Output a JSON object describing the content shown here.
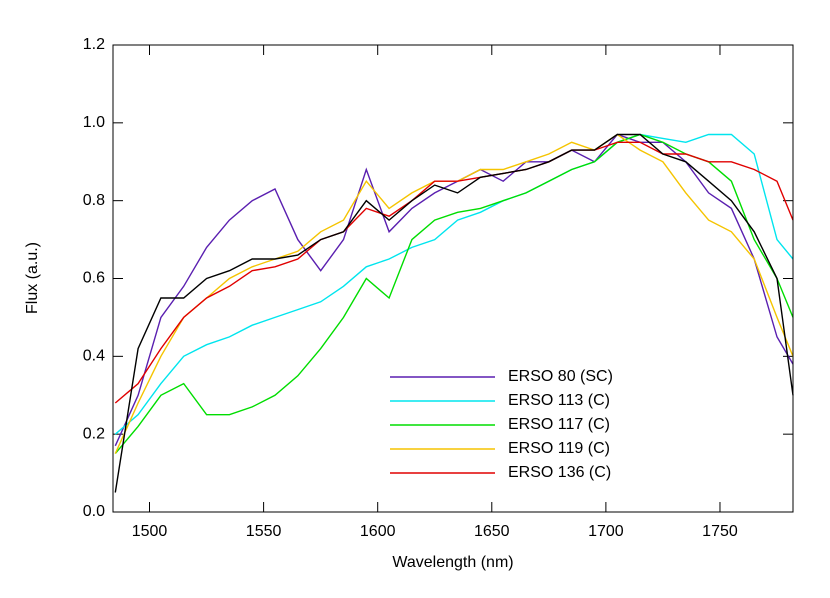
{
  "chart_data": {
    "type": "line",
    "xlabel": "Wavelength (nm)",
    "ylabel": "Flux (a.u.)",
    "x": [
      1485,
      1495,
      1505,
      1515,
      1525,
      1535,
      1545,
      1555,
      1565,
      1575,
      1585,
      1595,
      1605,
      1615,
      1625,
      1635,
      1645,
      1655,
      1665,
      1675,
      1685,
      1695,
      1705,
      1715,
      1725,
      1735,
      1745,
      1755,
      1765,
      1775,
      1782
    ],
    "series": [
      {
        "name": "ERSO 80 (SC)",
        "color": "#5a1fb0",
        "values": [
          0.17,
          0.3,
          0.5,
          0.58,
          0.68,
          0.75,
          0.8,
          0.83,
          0.7,
          0.62,
          0.7,
          0.88,
          0.72,
          0.78,
          0.82,
          0.85,
          0.88,
          0.85,
          0.9,
          0.9,
          0.93,
          0.9,
          0.97,
          0.95,
          0.95,
          0.9,
          0.82,
          0.78,
          0.65,
          0.45,
          0.38
        ]
      },
      {
        "name": "ERSO 113 (C)",
        "color": "#00e5ee",
        "values": [
          0.2,
          0.25,
          0.33,
          0.4,
          0.43,
          0.45,
          0.48,
          0.5,
          0.52,
          0.54,
          0.58,
          0.63,
          0.65,
          0.68,
          0.7,
          0.75,
          0.77,
          0.8,
          0.82,
          0.85,
          0.88,
          0.9,
          0.95,
          0.97,
          0.96,
          0.95,
          0.97,
          0.97,
          0.92,
          0.7,
          0.65
        ]
      },
      {
        "name": "ERSO 117 (C)",
        "color": "#00dd00",
        "values": [
          0.15,
          0.22,
          0.3,
          0.33,
          0.25,
          0.25,
          0.27,
          0.3,
          0.35,
          0.42,
          0.5,
          0.6,
          0.55,
          0.7,
          0.75,
          0.77,
          0.78,
          0.8,
          0.82,
          0.85,
          0.88,
          0.9,
          0.95,
          0.97,
          0.95,
          0.92,
          0.9,
          0.85,
          0.7,
          0.6,
          0.5
        ]
      },
      {
        "name": "ERSO 119 (C)",
        "color": "#f5c400",
        "values": [
          0.15,
          0.28,
          0.4,
          0.5,
          0.55,
          0.6,
          0.63,
          0.65,
          0.67,
          0.72,
          0.75,
          0.85,
          0.78,
          0.82,
          0.85,
          0.85,
          0.88,
          0.88,
          0.9,
          0.92,
          0.95,
          0.93,
          0.97,
          0.93,
          0.9,
          0.82,
          0.75,
          0.72,
          0.65,
          0.5,
          0.4
        ]
      },
      {
        "name": "ERSO 136 (C)",
        "color": "#e00000",
        "values": [
          0.28,
          0.33,
          0.42,
          0.5,
          0.55,
          0.58,
          0.62,
          0.63,
          0.65,
          0.7,
          0.72,
          0.78,
          0.76,
          0.8,
          0.85,
          0.85,
          0.86,
          0.87,
          0.88,
          0.9,
          0.93,
          0.93,
          0.95,
          0.95,
          0.92,
          0.92,
          0.9,
          0.9,
          0.88,
          0.85,
          0.75
        ]
      },
      {
        "color": "#000000",
        "values": [
          0.05,
          0.42,
          0.55,
          0.55,
          0.6,
          0.62,
          0.65,
          0.65,
          0.66,
          0.7,
          0.72,
          0.8,
          0.75,
          0.8,
          0.84,
          0.82,
          0.86,
          0.87,
          0.88,
          0.9,
          0.93,
          0.93,
          0.97,
          0.97,
          0.92,
          0.9,
          0.85,
          0.8,
          0.72,
          0.6,
          0.3
        ]
      }
    ],
    "xlim": [
      1484,
      1782
    ],
    "xticks": [
      1500,
      1550,
      1600,
      1650,
      1700,
      1750
    ],
    "ylim": [
      0,
      1.2
    ],
    "yticks": [
      {
        "value": 0,
        "label": "0.0"
      },
      0.2,
      0.4,
      0.6,
      0.8,
      {
        "value": 1,
        "label": "1.0"
      },
      1.2
    ],
    "legend": "lower-right",
    "grid": false
  }
}
